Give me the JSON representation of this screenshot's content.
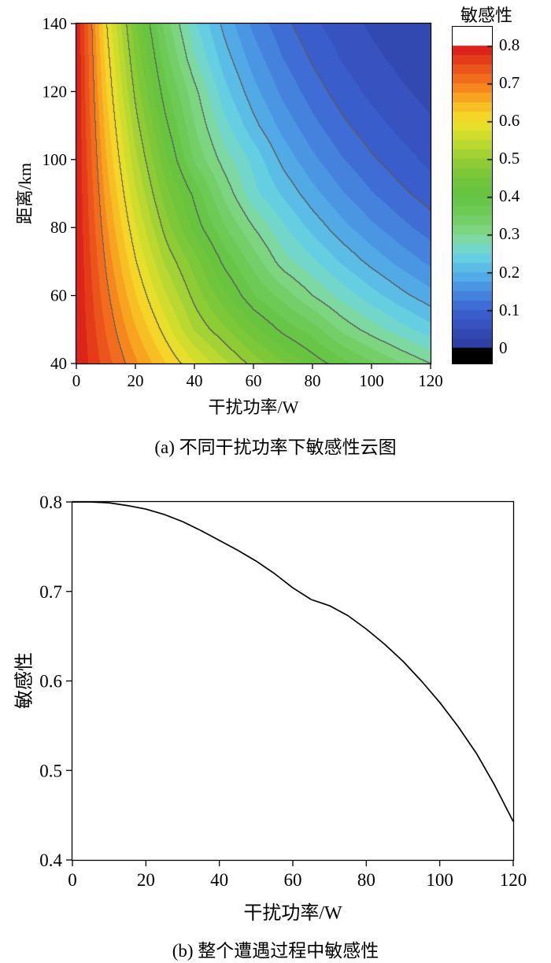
{
  "page": {
    "background": "#ffffff"
  },
  "chart_data": [
    {
      "type": "heatmap",
      "caption": "(a) 不同干扰功率下敏感性云图",
      "xlabel": "干扰功率/W",
      "ylabel": "距离/km",
      "colorbar_label": "敏感性",
      "x": [
        0,
        10,
        20,
        30,
        40,
        50,
        60,
        70,
        80,
        90,
        100,
        110,
        120
      ],
      "y": [
        40,
        50,
        60,
        70,
        80,
        90,
        100,
        110,
        120,
        130,
        140
      ],
      "z": [
        [
          0.8,
          0.737,
          0.68,
          0.626,
          0.577,
          0.532,
          0.49,
          0.452,
          0.416,
          0.384,
          0.354,
          0.326,
          0.3
        ],
        [
          0.8,
          0.722,
          0.652,
          0.589,
          0.522,
          0.48,
          0.434,
          0.392,
          0.362,
          0.319,
          0.288,
          0.26,
          0.235
        ],
        [
          0.8,
          0.708,
          0.626,
          0.554,
          0.49,
          0.434,
          0.376,
          0.34,
          0.3,
          0.266,
          0.235,
          0.208,
          0.184
        ],
        [
          0.8,
          0.694,
          0.601,
          0.521,
          0.462,
          0.392,
          0.34,
          0.286,
          0.255,
          0.221,
          0.192,
          0.166,
          0.144
        ],
        [
          0.8,
          0.68,
          0.577,
          0.49,
          0.416,
          0.354,
          0.3,
          0.255,
          0.217,
          0.184,
          0.156,
          0.133,
          0.113
        ],
        [
          0.8,
          0.666,
          0.554,
          0.461,
          0.392,
          0.319,
          0.258,
          0.221,
          0.184,
          0.153,
          0.127,
          0.106,
          0.088
        ],
        [
          0.8,
          0.652,
          0.532,
          0.434,
          0.346,
          0.288,
          0.243,
          0.192,
          0.156,
          0.127,
          0.104,
          0.085,
          0.069
        ],
        [
          0.8,
          0.639,
          0.511,
          0.408,
          0.326,
          0.26,
          0.208,
          0.166,
          0.133,
          0.106,
          0.085,
          0.068,
          0.054
        ],
        [
          0.8,
          0.626,
          0.49,
          0.384,
          0.308,
          0.235,
          0.184,
          0.144,
          0.113,
          0.088,
          0.069,
          0.054,
          0.042
        ],
        [
          0.8,
          0.614,
          0.471,
          0.361,
          0.277,
          0.212,
          0.163,
          0.125,
          0.096,
          0.073,
          0.056,
          0.043,
          0.033
        ],
        [
          0.8,
          0.601,
          0.452,
          0.34,
          0.255,
          0.192,
          0.144,
          0.108,
          0.081,
          0.061,
          0.046,
          0.035,
          0.026
        ]
      ],
      "zlim": [
        0,
        0.8
      ],
      "fill_step": 0.025,
      "line_step": 0.1,
      "xticks": {
        "values": [
          0,
          20,
          40,
          60,
          80,
          100,
          120
        ],
        "labels": [
          "0",
          "20",
          "40",
          "60",
          "80",
          "100",
          "120"
        ]
      },
      "yticks": {
        "values": [
          40,
          60,
          80,
          100,
          120,
          140
        ],
        "labels": [
          "40",
          "60",
          "80",
          "100",
          "120",
          "140"
        ]
      },
      "colorbar_ticks": {
        "values": [
          0.8,
          0.7,
          0.6,
          0.5,
          0.4,
          0.3,
          0.2,
          0.1,
          0
        ],
        "labels": [
          "0.8",
          "0.7",
          "0.6",
          "0.5",
          "0.4",
          "0.3",
          "0.2",
          "0.1",
          "0"
        ]
      },
      "colorbar_range": [
        -0.04,
        0.85
      ],
      "over_color": "#ffffff",
      "under_color": "#000000",
      "contour_line_color": "#5a5a5a",
      "colormap_stops": [
        {
          "t": 0.0,
          "color": "#2e3a9e"
        },
        {
          "t": 0.125,
          "color": "#3c62d2"
        },
        {
          "t": 0.1875,
          "color": "#468ce0"
        },
        {
          "t": 0.25,
          "color": "#55b4e8"
        },
        {
          "t": 0.3125,
          "color": "#6cd6de"
        },
        {
          "t": 0.375,
          "color": "#82d88c"
        },
        {
          "t": 0.4375,
          "color": "#70cc5c"
        },
        {
          "t": 0.5,
          "color": "#64c241"
        },
        {
          "t": 0.5625,
          "color": "#74c63a"
        },
        {
          "t": 0.625,
          "color": "#96ce34"
        },
        {
          "t": 0.6875,
          "color": "#c6dc2e"
        },
        {
          "t": 0.75,
          "color": "#f2e02a"
        },
        {
          "t": 0.8125,
          "color": "#f8b422"
        },
        {
          "t": 0.875,
          "color": "#f5781e"
        },
        {
          "t": 0.9375,
          "color": "#e84818"
        },
        {
          "t": 1.0,
          "color": "#d7191c"
        }
      ]
    },
    {
      "type": "line",
      "caption": "(b) 整个遭遇过程中敏感性",
      "xlabel": "干扰功率/W",
      "ylabel": "敏感性",
      "x": [
        0,
        5,
        10,
        15,
        20,
        25,
        30,
        35,
        40,
        45,
        50,
        55,
        60,
        65,
        70,
        75,
        80,
        85,
        90,
        95,
        100,
        105,
        110,
        115,
        120
      ],
      "y": [
        0.8,
        0.8,
        0.799,
        0.796,
        0.792,
        0.786,
        0.778,
        0.768,
        0.757,
        0.746,
        0.734,
        0.72,
        0.704,
        0.691,
        0.684,
        0.673,
        0.658,
        0.641,
        0.622,
        0.6,
        0.576,
        0.549,
        0.519,
        0.483,
        0.443
      ],
      "xlim": [
        0,
        120
      ],
      "ylim": [
        0.4,
        0.8
      ],
      "xticks": {
        "values": [
          0,
          20,
          40,
          60,
          80,
          100,
          120
        ],
        "labels": [
          "0",
          "20",
          "40",
          "60",
          "80",
          "100",
          "120"
        ]
      },
      "yticks": {
        "values": [
          0.4,
          0.5,
          0.6,
          0.7,
          0.8
        ],
        "labels": [
          "0.4",
          "0.5",
          "0.6",
          "0.7",
          "0.8"
        ]
      },
      "line_color": "#000000"
    }
  ]
}
